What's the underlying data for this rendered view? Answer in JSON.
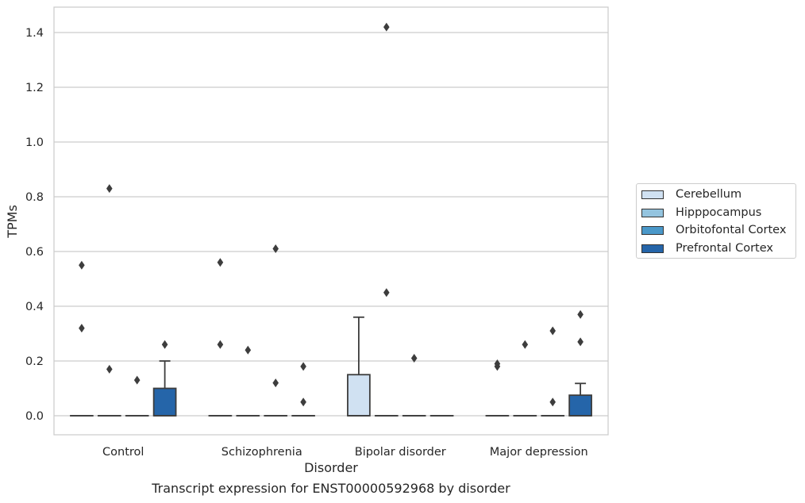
{
  "chart_data": {
    "type": "boxplot",
    "caption": "Transcript expression for ENST00000592968 by disorder",
    "xlabel": "Disorder",
    "ylabel": "TPMs",
    "ylim": [
      -0.07,
      1.49
    ],
    "yticks": [
      0.0,
      0.2,
      0.4,
      0.6,
      0.8,
      1.0,
      1.2,
      1.4
    ],
    "ytick_labels": [
      "0.0",
      "0.2",
      "0.4",
      "0.6",
      "0.8",
      "1.0",
      "1.2",
      "1.4"
    ],
    "grid": "horizontal",
    "legend_position": "right",
    "categories": [
      "Control",
      "Schizophrenia",
      "Bipolar disorder",
      "Major depression"
    ],
    "series": [
      {
        "name": "Cerebellum",
        "color": "#d0e1f2",
        "boxes": [
          {
            "q1": 0,
            "median": 0,
            "q3": 0,
            "whislo": 0,
            "whishi": 0,
            "fliers": [
              0.55,
              0.32
            ]
          },
          {
            "q1": 0,
            "median": 0,
            "q3": 0,
            "whislo": 0,
            "whishi": 0,
            "fliers": [
              0.56,
              0.26
            ]
          },
          {
            "q1": 0,
            "median": 0,
            "q3": 0.15,
            "whislo": 0,
            "whishi": 0.36,
            "fliers": []
          },
          {
            "q1": 0,
            "median": 0,
            "q3": 0,
            "whislo": 0,
            "whishi": 0,
            "fliers": [
              0.19,
              0.18
            ]
          }
        ]
      },
      {
        "name": "Hipppocampus",
        "color": "#94c4df",
        "boxes": [
          {
            "q1": 0,
            "median": 0,
            "q3": 0,
            "whislo": 0,
            "whishi": 0,
            "fliers": [
              0.83,
              0.17
            ]
          },
          {
            "q1": 0,
            "median": 0,
            "q3": 0,
            "whislo": 0,
            "whishi": 0,
            "fliers": [
              0.24
            ]
          },
          {
            "q1": 0,
            "median": 0,
            "q3": 0,
            "whislo": 0,
            "whishi": 0,
            "fliers": [
              1.42,
              0.45
            ]
          },
          {
            "q1": 0,
            "median": 0,
            "q3": 0,
            "whislo": 0,
            "whishi": 0,
            "fliers": [
              0.26
            ]
          }
        ]
      },
      {
        "name": "Orbitofontal Cortex",
        "color": "#4a98c9",
        "boxes": [
          {
            "q1": 0,
            "median": 0,
            "q3": 0,
            "whislo": 0,
            "whishi": 0,
            "fliers": [
              0.13
            ]
          },
          {
            "q1": 0,
            "median": 0,
            "q3": 0,
            "whislo": 0,
            "whishi": 0,
            "fliers": [
              0.61,
              0.12
            ]
          },
          {
            "q1": 0,
            "median": 0,
            "q3": 0,
            "whislo": 0,
            "whishi": 0,
            "fliers": [
              0.21
            ]
          },
          {
            "q1": 0,
            "median": 0,
            "q3": 0,
            "whislo": 0,
            "whishi": 0,
            "fliers": [
              0.31,
              0.05
            ]
          }
        ]
      },
      {
        "name": "Prefrontal Cortex",
        "color": "#2565a9",
        "boxes": [
          {
            "q1": 0,
            "median": 0,
            "q3": 0.1,
            "whislo": 0,
            "whishi": 0.2,
            "fliers": [
              0.26
            ]
          },
          {
            "q1": 0,
            "median": 0,
            "q3": 0,
            "whislo": 0,
            "whishi": 0,
            "fliers": [
              0.18,
              0.05
            ]
          },
          {
            "q1": 0,
            "median": 0,
            "q3": 0,
            "whislo": 0,
            "whishi": 0,
            "fliers": []
          },
          {
            "q1": 0,
            "median": 0,
            "q3": 0.075,
            "whislo": 0,
            "whishi": 0.118,
            "fliers": [
              0.37,
              0.27
            ]
          }
        ]
      }
    ]
  }
}
